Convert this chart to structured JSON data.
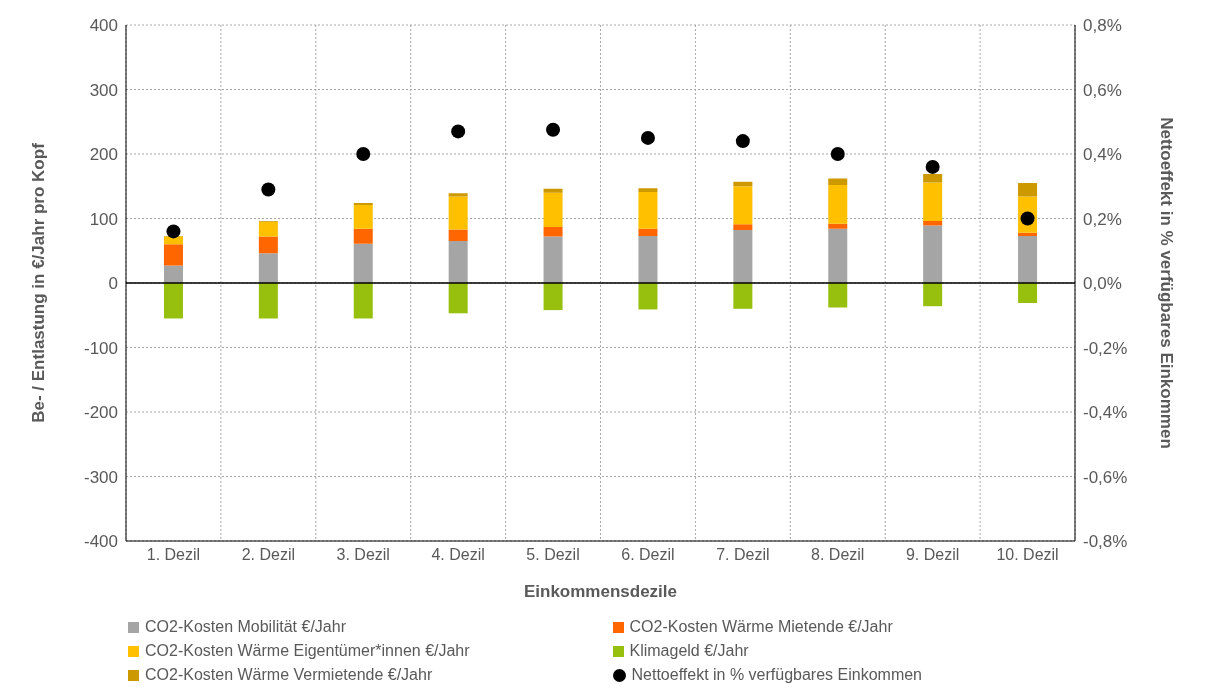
{
  "chart_data": {
    "type": "bar",
    "stacked": true,
    "categories": [
      "1. Dezil",
      "2. Dezil",
      "3. Dezil",
      "4. Dezil",
      "5. Dezil",
      "6. Dezil",
      "7. Dezil",
      "8. Dezil",
      "9. Dezil",
      "10. Dezil"
    ],
    "xlabel": "Einkommensdezile",
    "ylabel": "Be- / Entlastung in €/Jahr pro Kopf",
    "y2label": "Nettoeffekt in % verfügbares Einkommen",
    "ylim": [
      -400,
      400
    ],
    "yticks": [
      -400,
      -300,
      -200,
      -100,
      0,
      100,
      200,
      300,
      400
    ],
    "y2lim": [
      -0.8,
      0.8
    ],
    "y2ticks": [
      {
        "value": -0.8,
        "label": "-0,8%"
      },
      {
        "value": -0.6,
        "label": "-0,6%"
      },
      {
        "value": -0.4,
        "label": "-0,4%"
      },
      {
        "value": -0.2,
        "label": "-0,2%"
      },
      {
        "value": 0,
        "label": "0,0%"
      },
      {
        "value": 0.2,
        "label": "0,2%"
      },
      {
        "value": 0.4,
        "label": "0,4%"
      },
      {
        "value": 0.6,
        "label": "0,6%"
      },
      {
        "value": 0.8,
        "label": "0,8%"
      }
    ],
    "grid": true,
    "legend": "bottom",
    "series": [
      {
        "name": "CO2-Kosten Mobilität €/Jahr",
        "color": "#a5a5a5",
        "values": [
          27,
          46,
          61,
          65,
          72,
          73,
          82,
          84,
          89,
          73
        ]
      },
      {
        "name": "CO2-Kosten Wärme Mietende €/Jahr",
        "color": "#ff6600",
        "values": [
          33,
          26,
          23,
          18,
          15,
          11,
          9,
          8,
          7,
          5
        ]
      },
      {
        "name": "CO2-Kosten Wärme Eigentümer*innen €/Jahr",
        "color": "#ffc000",
        "values": [
          12,
          23,
          37,
          51,
          53,
          57,
          59,
          60,
          60,
          56
        ]
      },
      {
        "name": "Klimageld €/Jahr",
        "color": "#97c00e",
        "values": [
          -55,
          -55,
          -55,
          -47,
          -42,
          -41,
          -40,
          -38,
          -36,
          -31
        ]
      },
      {
        "name": "CO2-Kosten Wärme Vermietende €/Jahr",
        "color": "#cc9900",
        "values": [
          1,
          1,
          3,
          5,
          6,
          6,
          7,
          10,
          13,
          21
        ]
      },
      {
        "name": "Nettoeffekt in % verfügbares Einkommen",
        "type": "scatter",
        "axis": "y2",
        "marker": "circle",
        "color": "#000000",
        "values": [
          0.16,
          0.29,
          0.4,
          0.47,
          0.475,
          0.45,
          0.44,
          0.4,
          0.36,
          0.2
        ]
      }
    ]
  }
}
